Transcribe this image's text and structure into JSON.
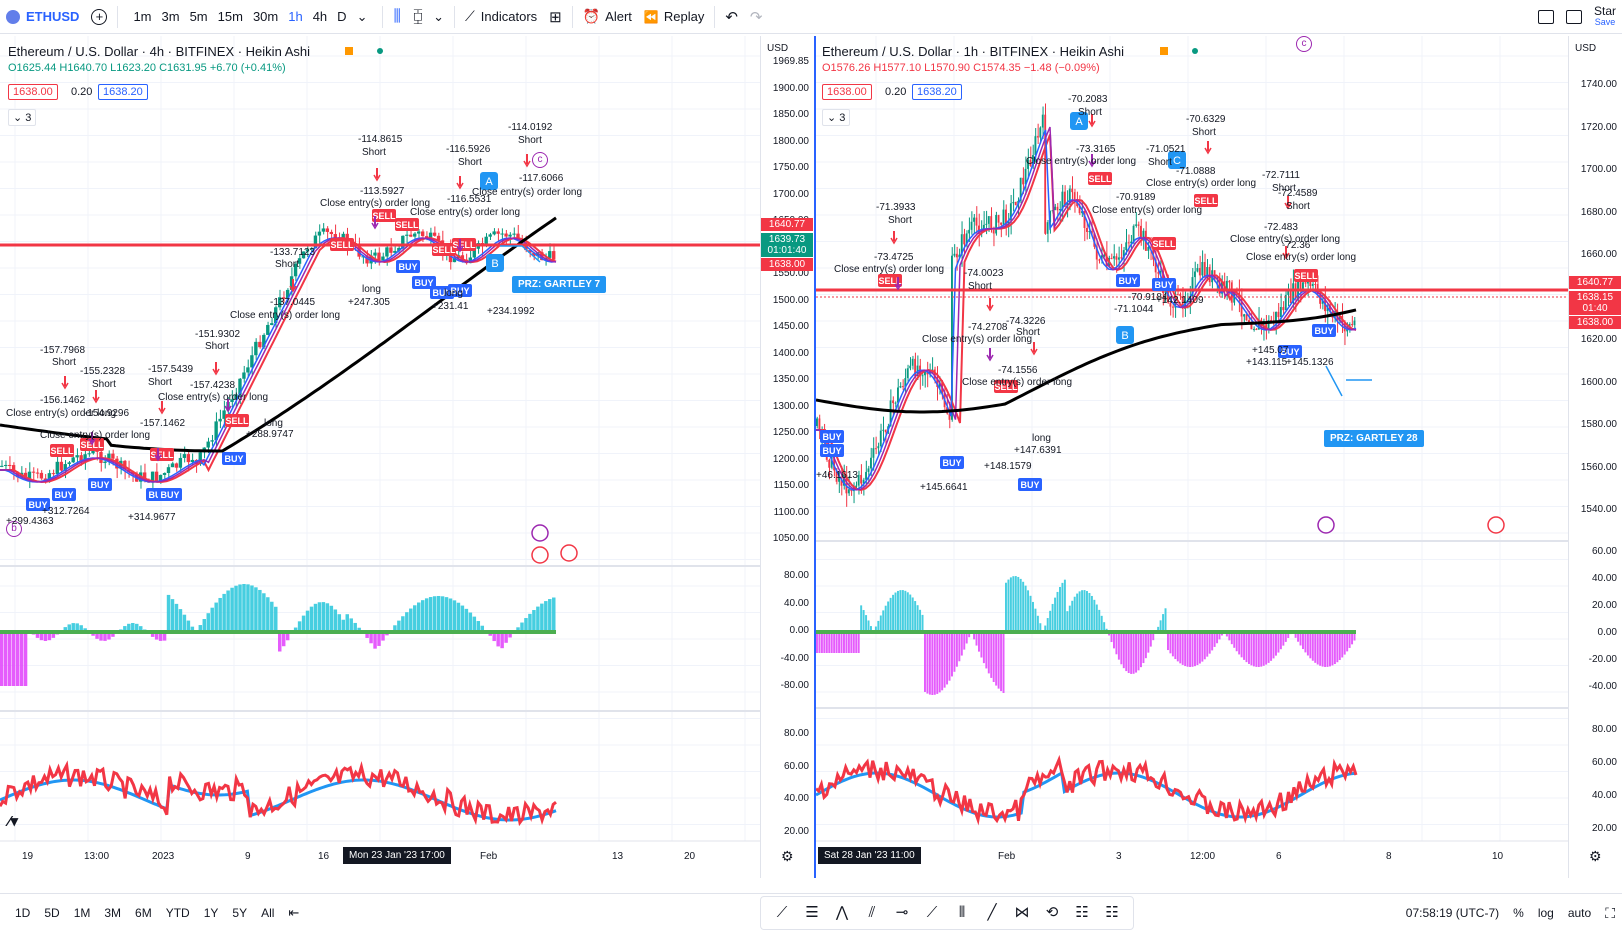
{
  "topbar": {
    "symbol": "ETHUSD",
    "intervals": [
      "1m",
      "3m",
      "5m",
      "15m",
      "30m",
      "1h",
      "4h",
      "D"
    ],
    "active_interval": "1h",
    "indicators_label": "Indicators",
    "alert_label": "Alert",
    "replay_label": "Replay",
    "star_label": "Star",
    "save_label": "Save"
  },
  "left": {
    "title": "Ethereum / U.S. Dollar · 4h · BITFINEX · Heikin Ashi",
    "ohlc": "O1625.44 H1640.70 L1623.20 C1631.95 +6.70 (+0.41%)",
    "bid": "1638.00",
    "spread": "0.20",
    "ask": "1638.20",
    "indicators_count": "3",
    "currency": "USD",
    "price_ticks": [
      "1969.85",
      "1900.00",
      "1850.00",
      "1800.00",
      "1750.00",
      "1700.00",
      "1650.00",
      "1600.00",
      "1550.00",
      "1500.00",
      "1450.00",
      "1400.00",
      "1350.00",
      "1300.00",
      "1250.00",
      "1200.00",
      "1150.00",
      "1100.00",
      "1050.00"
    ],
    "price_last": "1640.77",
    "price_current": "1639.73",
    "countdown": "01:01:40",
    "price_bid_tag": "1638.00",
    "osc_ticks": [
      "80.00",
      "40.00",
      "0.00",
      "-40.00",
      "-80.00"
    ],
    "rsi_ticks": [
      "80.00",
      "60.00",
      "40.00",
      "20.00"
    ],
    "x_labels": [
      "19",
      "13:00",
      "2023",
      "9",
      "16",
      "Feb",
      "13",
      "20"
    ],
    "x_badge": "Mon 23 Jan '23   17:00",
    "przl": "PRZ: GARTLEY 7",
    "annotations": [
      "-114.0192",
      "Short",
      "-114.8615",
      "Short",
      "-116.5926",
      "Short",
      "-117.6066",
      "-113.5927",
      "Close entry(s) order long",
      "-116.5531",
      "Close entry(s) order long",
      "Close entry(s) order long",
      "-133.7123",
      "Short",
      "-137.0445",
      "Close entry(s) order long",
      "-151.9302",
      "Short",
      "-157.4238",
      "-157.5439",
      "Short",
      "Close entry(s) order long",
      "-157.7968",
      "Short",
      "-155.2328",
      "Short",
      "-156.1462",
      "Close entry(s) order long",
      "-154.9296",
      "-157.1462",
      "Close entry(s) order long",
      "+299.4363",
      "+312.7264",
      "+314.9677",
      "+288.9747",
      "+247.305",
      "+231.41",
      "+234.1992",
      "long",
      "long",
      "long"
    ]
  },
  "right": {
    "title": "Ethereum / U.S. Dollar · 1h · BITFINEX · Heikin Ashi",
    "ohlc": "O1576.26 H1577.10 L1570.90 C1574.35 −1.48 (−0.09%)",
    "bid": "1638.00",
    "spread": "0.20",
    "ask": "1638.20",
    "indicators_count": "3",
    "currency": "USD",
    "price_ticks": [
      "1740.00",
      "1720.00",
      "1700.00",
      "1680.00",
      "1660.00",
      "1640.00",
      "1620.00",
      "1600.00",
      "1580.00",
      "1560.00",
      "1540.00"
    ],
    "price_last": "1640.77",
    "price_current": "1638.15",
    "countdown": "01:40",
    "price_bid_tag": "1638.00",
    "osc_ticks": [
      "60.00",
      "40.00",
      "20.00",
      "0.00",
      "-20.00",
      "-40.00"
    ],
    "rsi_ticks": [
      "80.00",
      "60.00",
      "40.00",
      "20.00"
    ],
    "x_labels": [
      "Feb",
      "3",
      "12:00",
      "6",
      "8",
      "10"
    ],
    "x_badge": "Sat 28 Jan '23   11:00",
    "przl": "PRZ: GARTLEY 28",
    "annotations": [
      "-70.2083",
      "Short",
      "-70.6329",
      "Short",
      "-73.3165",
      "Close entry(s) order long",
      "-71.0521",
      "Short",
      "-71.0888",
      "Close entry(s) order long",
      "-71.3933",
      "Short",
      "-73.4725",
      "Close entry(s) order long",
      "-74.0023",
      "Short",
      "-74.2708",
      "Close entry(s) order long",
      "-74.3226",
      "Short",
      "-74.1556",
      "Close entry(s) order long",
      "-72.7111",
      "Short",
      "-72.4589",
      "Short",
      "-72.483",
      "Close entry(s) order long",
      "-72.36",
      "Close entry(s) order long",
      "-70.9189",
      "Close entry(s) order long",
      "-70.9184",
      "-71.1044",
      "+142.1409",
      "+145.07",
      "+143.115",
      "+145.1326",
      "+46.1613",
      "+145.6641",
      "+148.1579",
      "+147.6391",
      "long"
    ]
  },
  "bottombar": {
    "ranges": [
      "1D",
      "5D",
      "1M",
      "3M",
      "6M",
      "YTD",
      "1Y",
      "5Y",
      "All"
    ],
    "clock": "07:58:19 (UTC-7)",
    "percent": "%",
    "log": "log",
    "auto": "auto"
  },
  "colors": {
    "accent": "#2962ff",
    "sell": "#f23645",
    "buy": "#2962ff",
    "up": "#089981",
    "down": "#f23645",
    "hline": "#f23645"
  }
}
